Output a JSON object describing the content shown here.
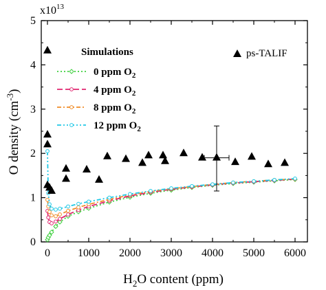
{
  "chart_data": {
    "type": "line",
    "xlabel_main": "H",
    "xlabel_sub": "2",
    "xlabel_rest": "O content (ppm)",
    "ylabel_main": "O density (cm",
    "ylabel_sup": "-3",
    "ylabel_end": ")",
    "multiplier_base": "x10",
    "multiplier_exp": "13",
    "xlim": [
      -150,
      6300
    ],
    "ylim": [
      0,
      5
    ],
    "x_ticks": [
      0,
      1000,
      2000,
      3000,
      4000,
      5000,
      6000
    ],
    "y_ticks": [
      0,
      1,
      2,
      3,
      4,
      5
    ],
    "grid": false,
    "legend": {
      "placement": "top-left",
      "title": "Simulations",
      "entries_prefix": [
        "0 ppm O",
        "4 ppm O",
        "8 ppm O",
        "12 ppm O"
      ],
      "entries_sub": "2"
    },
    "series": [
      {
        "name": "0 ppm O2",
        "color": "#3ccf3c",
        "dash": "2,3",
        "marker": "diamond",
        "x": [
          0,
          20,
          50,
          100,
          200,
          300,
          500,
          750,
          1000,
          1500,
          2000,
          2500,
          3000,
          3500,
          4000,
          4500,
          5000,
          5500,
          6000
        ],
        "values": [
          0.05,
          0.1,
          0.15,
          0.22,
          0.35,
          0.45,
          0.58,
          0.68,
          0.76,
          0.9,
          1.01,
          1.1,
          1.17,
          1.23,
          1.28,
          1.32,
          1.35,
          1.38,
          1.41
        ]
      },
      {
        "name": "4 ppm O2",
        "color": "#e0246e",
        "dash": "8,4",
        "marker": "circle",
        "x": [
          0,
          20,
          50,
          100,
          200,
          300,
          500,
          750,
          1000,
          1500,
          2000,
          2500,
          3000,
          3500,
          4000,
          4500,
          5000,
          5500,
          6000
        ],
        "values": [
          0.7,
          0.55,
          0.45,
          0.42,
          0.46,
          0.52,
          0.62,
          0.72,
          0.8,
          0.93,
          1.04,
          1.12,
          1.19,
          1.24,
          1.29,
          1.33,
          1.36,
          1.39,
          1.42
        ]
      },
      {
        "name": "8 ppm O2",
        "color": "#f08c28",
        "dash": "6,3,2,3",
        "marker": "circle",
        "x": [
          0,
          20,
          50,
          100,
          200,
          300,
          500,
          750,
          1000,
          1500,
          2000,
          2500,
          3000,
          3500,
          4000,
          4500,
          5000,
          5500,
          6000
        ],
        "values": [
          0.95,
          0.8,
          0.68,
          0.6,
          0.58,
          0.62,
          0.7,
          0.78,
          0.85,
          0.96,
          1.06,
          1.14,
          1.2,
          1.25,
          1.3,
          1.34,
          1.37,
          1.4,
          1.42
        ]
      },
      {
        "name": "12 ppm O2",
        "color": "#1ec8e6",
        "dash": "6,3,2,3,2,3",
        "marker": "circle",
        "x": [
          0,
          20,
          50,
          100,
          200,
          300,
          500,
          750,
          1000,
          1500,
          2000,
          2500,
          3000,
          3500,
          4000,
          4500,
          5000,
          5500,
          6000
        ],
        "values": [
          2.05,
          1.1,
          0.85,
          0.75,
          0.73,
          0.75,
          0.8,
          0.86,
          0.91,
          1.0,
          1.08,
          1.15,
          1.21,
          1.26,
          1.3,
          1.34,
          1.37,
          1.4,
          1.43
        ]
      },
      {
        "name": "ps-TALIF",
        "color": "#000000",
        "marker": "triangle",
        "x": [
          0,
          0,
          0,
          0,
          50,
          100,
          450,
          450,
          950,
          1250,
          1450,
          1900,
          2300,
          2450,
          2800,
          2850,
          3300,
          3750,
          4100,
          4550,
          4950,
          5350,
          5750
        ],
        "values": [
          4.32,
          2.42,
          2.2,
          1.28,
          1.22,
          1.15,
          1.65,
          1.42,
          1.63,
          1.4,
          1.93,
          1.87,
          1.78,
          1.95,
          1.95,
          1.82,
          2.0,
          1.9,
          1.9,
          1.8,
          1.92,
          1.75,
          1.78
        ]
      }
    ],
    "error_bar": {
      "x": 4100,
      "y": 1.9,
      "y_low": 1.15,
      "y_high": 2.62,
      "x_low": 3800,
      "x_high": 4400
    }
  }
}
